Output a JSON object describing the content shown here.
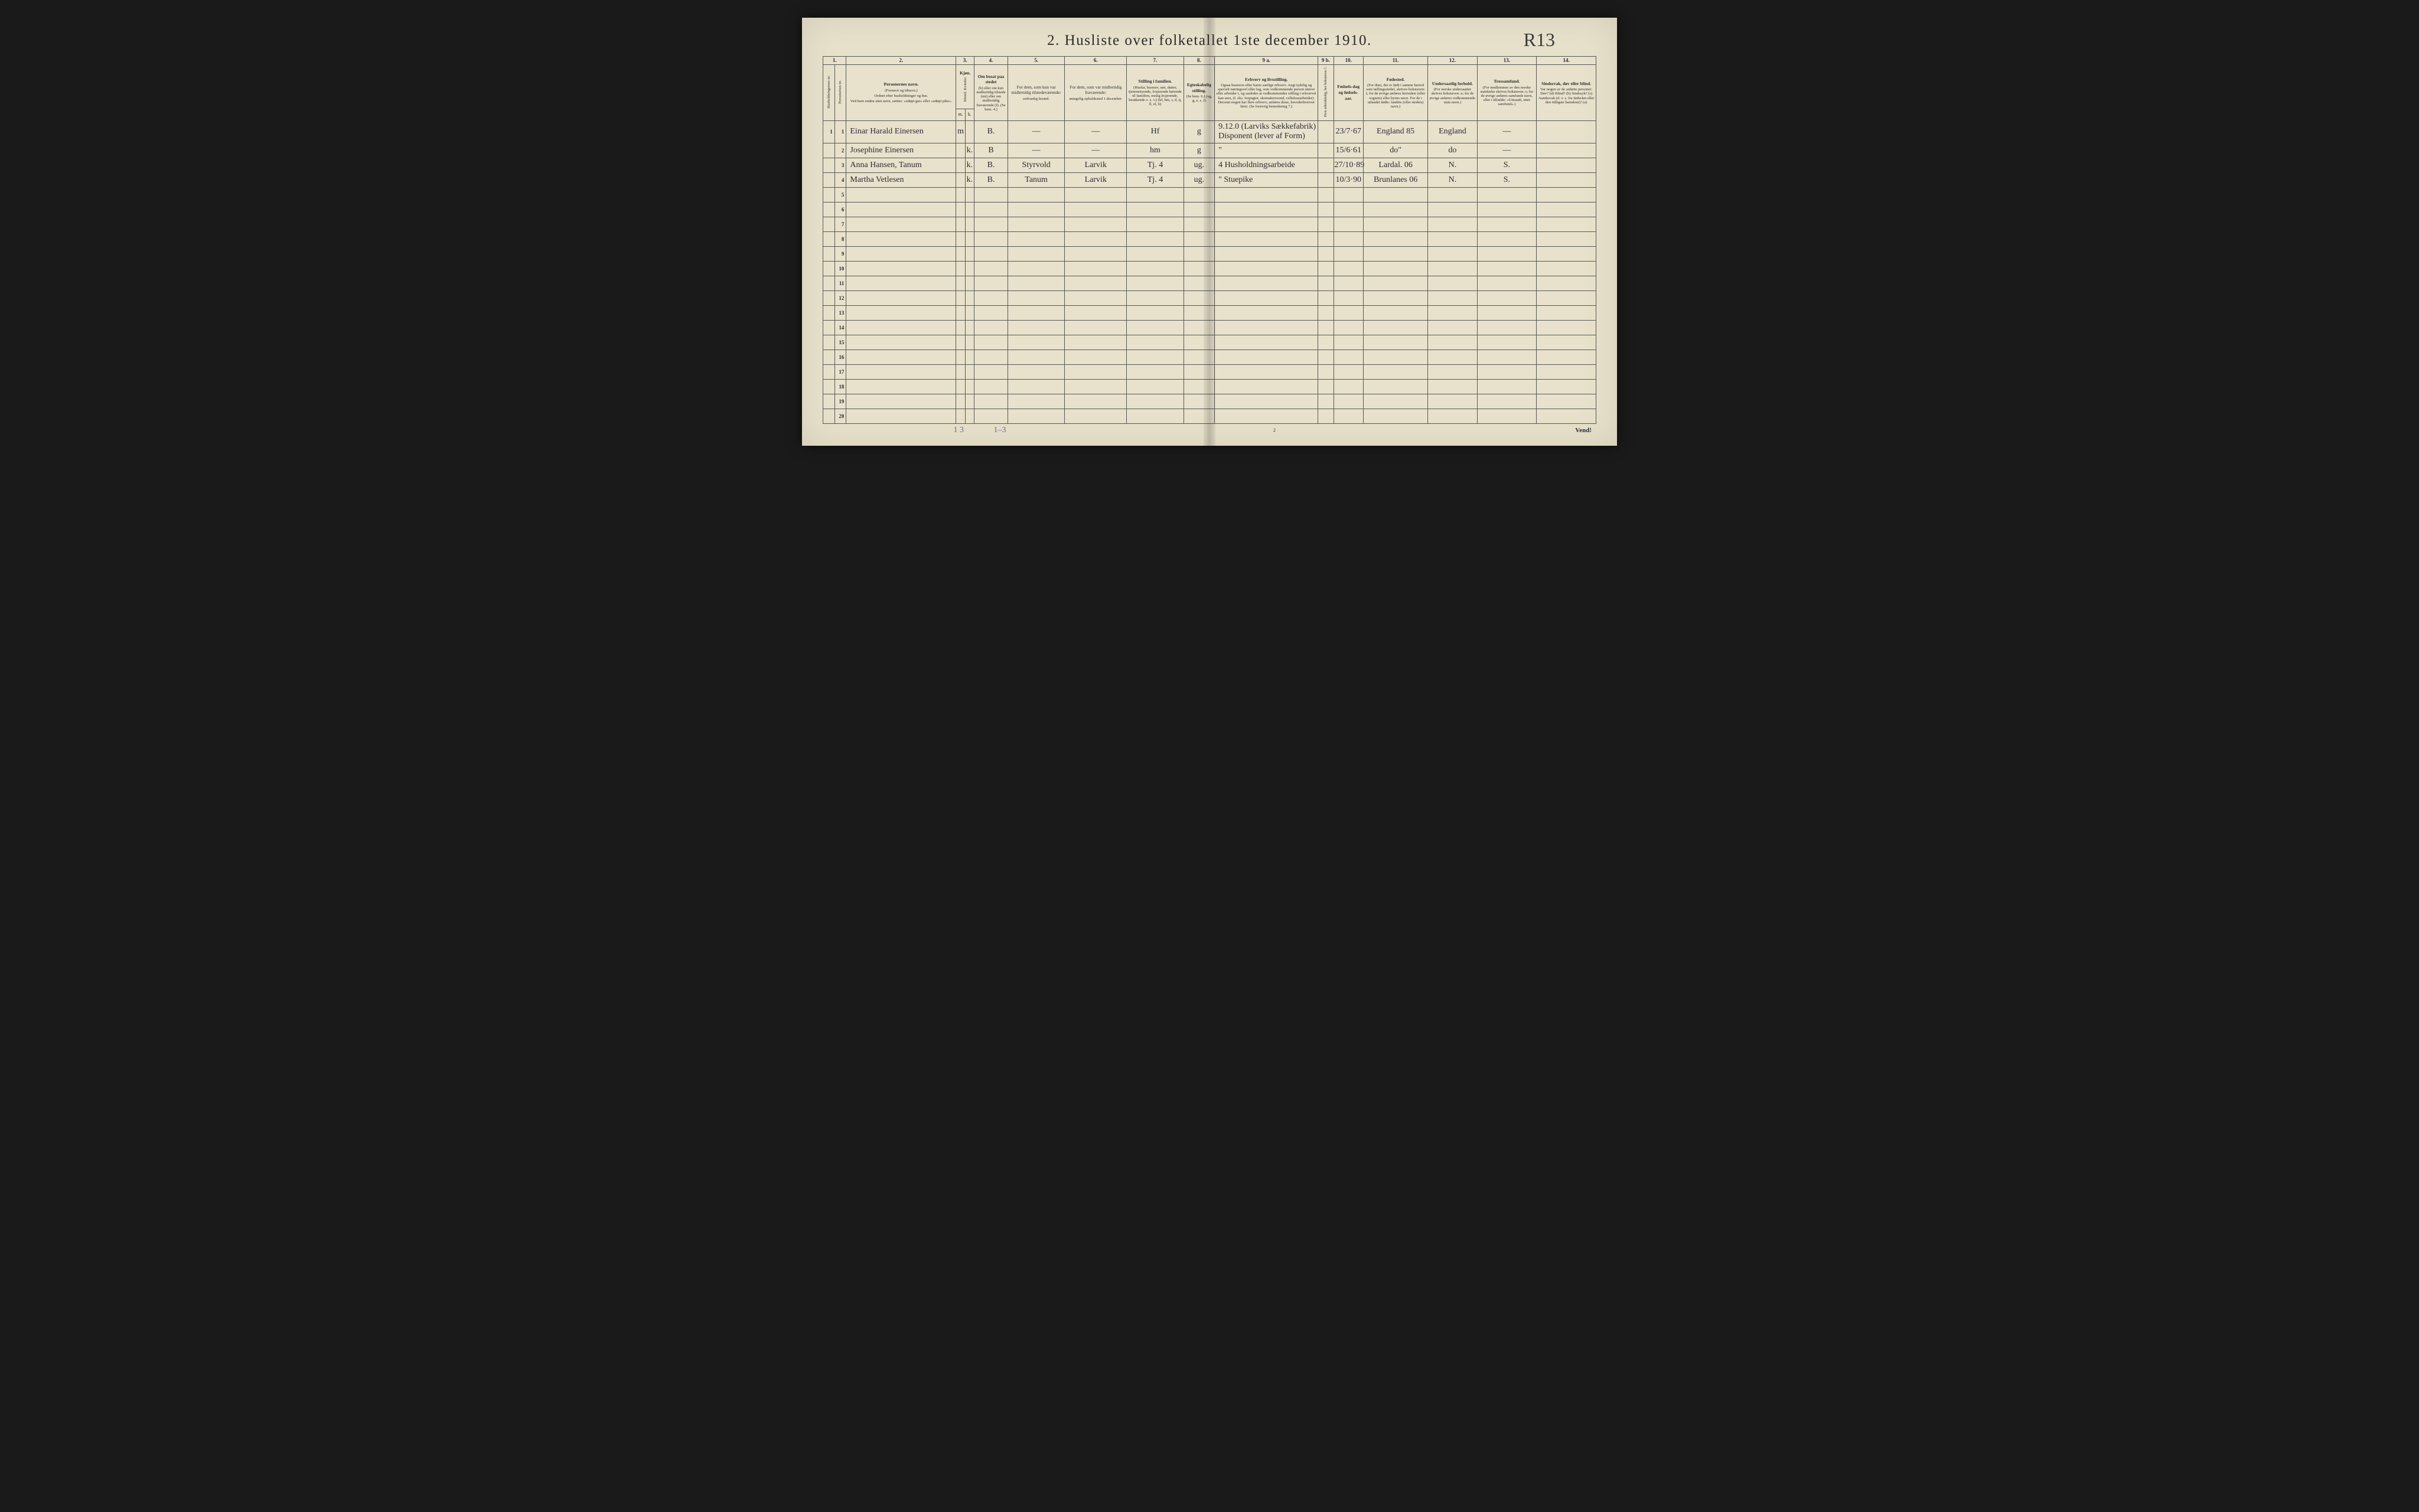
{
  "title": "2.  Husliste over folketallet 1ste december 1910.",
  "top_annotation": "R13",
  "page_number": "2",
  "footer_note": "Vend!",
  "pencil_left": "1 3",
  "pencil_center": "1–3",
  "column_numbers": [
    "1.",
    "2.",
    "3.",
    "4.",
    "5.",
    "6.",
    "7.",
    "8.",
    "9 a.",
    "9 b.",
    "10.",
    "11.",
    "12.",
    "13.",
    "14."
  ],
  "headers": {
    "col1": {
      "a": "Husholdningernes nr.",
      "b": "Personernes nr."
    },
    "col2": {
      "title": "Personernes navn.",
      "sub1": "(Fornavn og tilnavn.)",
      "sub2": "Ordnet efter husholdninger og hus.",
      "sub3": "Ved barn endnu uten navn, sættes: «udøpt gut» eller «udøpt pike»."
    },
    "col3": {
      "title": "Kjøn.",
      "sub": "Mænd.  Kvinder.",
      "m": "m.",
      "k": "k."
    },
    "col4": {
      "title": "Om bosat paa stedet",
      "sub": "(b) eller om kun midlertidig tilstede (mt) eller om midlertidig fraværende (f). (Se bem. 4.)"
    },
    "col5": {
      "title": "For dem, som kun var midlertidig tilstedeværende:",
      "sub": "sedvanlig bosted."
    },
    "col6": {
      "title": "For dem, som var midlertidig fraværende:",
      "sub": "antagelig opholdssted 1 december."
    },
    "col7": {
      "title": "Stilling i familien.",
      "sub": "(Husfar, husmor, søn, datter, tjenestetyende, losjerende hørende til familien, enslig losjerende, besøkende o. s. v.) (hf, hm, s, d, tj, fl, el, b)"
    },
    "col8": {
      "title": "Egteskabelig stilling.",
      "sub": "(Se bem. 6.) (ug, g, e, s, f)"
    },
    "col9a": {
      "title": "Erhverv og livsstilling.",
      "sub": "Ogsaa husmors eller barns særlige erhverv. Angi tydelig og specielt næringsvel eller fag, som vedkommende person utøver eller arbeider i, og saaledes at vedkommendes stilling i erhvervet kan sees, (f. eks. forpagter, skomakersvend, cellulosearbeider). Dersom nogen har flere erhverv, anføres disse, hovederhvervet først. (Se forøvrig bemerkning 7.)"
    },
    "col9b": {
      "title": "Hvis arbeidsledig, her bokstaven: l."
    },
    "col10": {
      "title": "Fødsels-dag og fødsels-aar."
    },
    "col11": {
      "title": "Fødested.",
      "sub": "(For dem, der er født i samme herred som tællingsstedet, skrives bokstaven: t; for de øvrige anføres herredets (eller sognets) eller byens navn. For de i utlandet fødte: landets (eller stedets) navn.)"
    },
    "col12": {
      "title": "Undersaatlig forhold.",
      "sub": "(For norske undersaatter skrives bokstaven: n; for de øvrige anføres vedkommende stats navn.)"
    },
    "col13": {
      "title": "Trossamfund.",
      "sub": "(For medlemmer av den norske statskirke skrives bokstaven: s; for de øvrige anføres samfunds navn, eller i tilfælde: «Uttraadt, intet samfund».)"
    },
    "col14": {
      "title": "Sindssvak, døv eller blind.",
      "sub": "Var nogen av de anførte personer: Døv? (d) Blind? (b) Sindssyk? (s) Aandssvak (d. v. s. fra fødselen eller den tidligste barndom)? (a)"
    }
  },
  "rows": [
    {
      "hh": "1",
      "pn": "1",
      "name": "Einar Harald Einersen",
      "m": "m",
      "k": "",
      "c4": "B.",
      "c5": "—",
      "c6": "—",
      "c7": "Hf",
      "c8": "g",
      "c9a": "9.12.0 (Larviks Sækkefabrik) Disponent (lever af Form)",
      "c9b": "",
      "c10": "23/7·67",
      "c11": "England  85",
      "c12": "England",
      "c13": "—",
      "c14": ""
    },
    {
      "hh": "",
      "pn": "2",
      "name": "Josephine Einersen",
      "m": "",
      "k": "k.",
      "c4": "B",
      "c5": "—",
      "c6": "—",
      "c7": "hm",
      "c8": "g",
      "c9a": "\"",
      "c9b": "",
      "c10": "15/6·61",
      "c11": "do\"",
      "c12": "do",
      "c13": "—",
      "c14": ""
    },
    {
      "hh": "",
      "pn": "3",
      "name": "Anna Hansen, Tanum",
      "m": "",
      "k": "k.",
      "c4": "B.",
      "c5": "Styrvold",
      "c6": "Larvik",
      "c7": "Tj.  4",
      "c8": "ug.",
      "c9a": "4   Husholdningsarbeide",
      "c9b": "",
      "c10": "27/10·89",
      "c11": "Lardal.  06",
      "c12": "N.",
      "c13": "S.",
      "c14": ""
    },
    {
      "hh": "",
      "pn": "4",
      "name": "Martha Vetlesen",
      "m": "",
      "k": "k.",
      "c4": "B.",
      "c5": "Tanum",
      "c6": "Larvik",
      "c7": "Tj.  4",
      "c8": "ug.",
      "c9a": "\"   Stuepike",
      "c9b": "",
      "c10": "10/3·90",
      "c11": "Brunlanes  06",
      "c12": "N.",
      "c13": "S.",
      "c14": ""
    }
  ],
  "num_rows": 20
}
